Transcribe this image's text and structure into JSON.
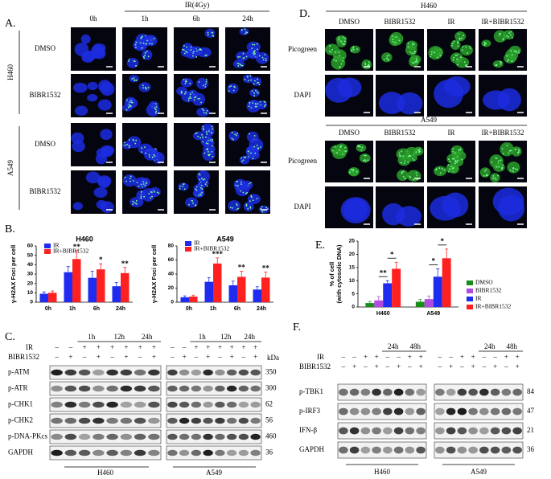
{
  "panel_labels": {
    "a": "A.",
    "b": "B.",
    "c": "C.",
    "d": "D.",
    "e": "E.",
    "f": "F."
  },
  "panel_a": {
    "col_0": "0h",
    "treatment": "IR(4Gy)",
    "cols": [
      "1h",
      "6h",
      "24h"
    ],
    "groups": [
      {
        "cell": "H460",
        "rows": [
          "DMSO",
          "BIBR1532"
        ]
      },
      {
        "cell": "A549",
        "rows": [
          "DMSO",
          "BIBR1532"
        ]
      }
    ]
  },
  "panel_d": {
    "groups": [
      {
        "cell": "H460",
        "cols": [
          "DMSO",
          "BIBR1532",
          "IR",
          "IR+BIBR1532"
        ],
        "rows": [
          "Picogreen",
          "DAPI"
        ]
      },
      {
        "cell": "A549",
        "cols": [
          "DMSO",
          "BIBR1532",
          "IR",
          "IR+BIBR1532"
        ],
        "rows": [
          "Picogreen",
          "DAPI"
        ]
      }
    ]
  },
  "chart_data": [
    {
      "type": "bar",
      "title": "H460",
      "ylabel": "γ-H2AX Foci per cell",
      "categories": [
        "0h",
        "1h",
        "6h",
        "24h"
      ],
      "ylim": [
        0,
        60
      ],
      "yticks": [
        0,
        10,
        20,
        30,
        40,
        50,
        60
      ],
      "series": [
        {
          "name": "IR",
          "color": "#1f2cf0",
          "values": [
            9,
            32,
            26,
            17
          ],
          "errors": [
            2,
            6,
            7,
            4
          ]
        },
        {
          "name": "IR+BIBR1532",
          "color": "#ff2020",
          "values": [
            10,
            46,
            35,
            31
          ],
          "errors": [
            2,
            9,
            6,
            6
          ]
        }
      ],
      "significance": [
        null,
        "**",
        "*",
        "**"
      ]
    },
    {
      "type": "bar",
      "title": "A549",
      "ylabel": "γ-H2AX Foci per cell",
      "categories": [
        "0h",
        "1h",
        "6h",
        "24h"
      ],
      "ylim": [
        0,
        80
      ],
      "yticks": [
        0,
        20,
        40,
        60,
        80
      ],
      "series": [
        {
          "name": "IR",
          "color": "#1f2cf0",
          "values": [
            7,
            29,
            24,
            18
          ],
          "errors": [
            2,
            6,
            6,
            4
          ]
        },
        {
          "name": "IR+BIBR1532",
          "color": "#ff2020",
          "values": [
            8,
            55,
            36,
            35
          ],
          "errors": [
            2,
            8,
            8,
            8
          ]
        }
      ],
      "significance": [
        null,
        "***",
        "**",
        "**"
      ]
    },
    {
      "type": "bar",
      "ylabel": [
        "% of cell",
        "(with cytosolic DNA)"
      ],
      "categories": [
        "H460",
        "A549"
      ],
      "ylim": [
        0,
        25
      ],
      "yticks": [
        0,
        5,
        10,
        15,
        20,
        25
      ],
      "series": [
        {
          "name": "DMSO",
          "color": "#1a8c1a",
          "values": [
            1.5,
            2
          ],
          "errors": [
            0.6,
            0.8
          ]
        },
        {
          "name": "BIBR1532",
          "color": "#b04ae0",
          "values": [
            2.5,
            3
          ],
          "errors": [
            1.5,
            1.2
          ]
        },
        {
          "name": "IR",
          "color": "#1f2cf0",
          "values": [
            9,
            11.5
          ],
          "errors": [
            1,
            3
          ]
        },
        {
          "name": "IR+BIBR1532",
          "color": "#ff2020",
          "values": [
            14.5,
            18.5
          ],
          "errors": [
            2.5,
            3.5
          ]
        }
      ],
      "significance": [
        [
          "**",
          "*"
        ],
        [
          "*",
          "*"
        ]
      ]
    }
  ],
  "panel_c": {
    "times": [
      "1h",
      "12h",
      "24h"
    ],
    "unit": "kDa",
    "treatments": [
      {
        "name": "IR",
        "signs": [
          "–",
          "–",
          "+",
          "+",
          "+",
          "+",
          "+",
          "+"
        ]
      },
      {
        "name": "BIBR1532",
        "signs": [
          "–",
          "+",
          "–",
          "+",
          "–",
          "+",
          "–",
          "+"
        ]
      }
    ],
    "rows": [
      {
        "name": "p-ATM",
        "kda": 350
      },
      {
        "name": "p-ATR",
        "kda": 300
      },
      {
        "name": "p-CHK1",
        "kda": 62
      },
      {
        "name": "p-CHK2",
        "kda": 56
      },
      {
        "name": "p-DNA-PKcs",
        "kda": 460
      },
      {
        "name": "GAPDH",
        "kda": 36
      }
    ],
    "cells": [
      "H460",
      "A549"
    ]
  },
  "panel_f": {
    "times": [
      "24h",
      "48h"
    ],
    "treatments": [
      {
        "name": "IR",
        "signs": [
          "–",
          "–",
          "+",
          "+",
          "–",
          "–",
          "+",
          "+"
        ]
      },
      {
        "name": "BIBR1532",
        "signs": [
          "–",
          "+",
          "–",
          "+",
          "–",
          "+",
          "–",
          "+"
        ]
      }
    ],
    "rows": [
      {
        "name": "p-TBK1",
        "kda": 84
      },
      {
        "name": "p-IRF3",
        "kda": 47
      },
      {
        "name": "IFN-β",
        "kda": 21
      },
      {
        "name": "GAPDH",
        "kda": 36
      }
    ],
    "cells": [
      "H460",
      "A549"
    ]
  }
}
